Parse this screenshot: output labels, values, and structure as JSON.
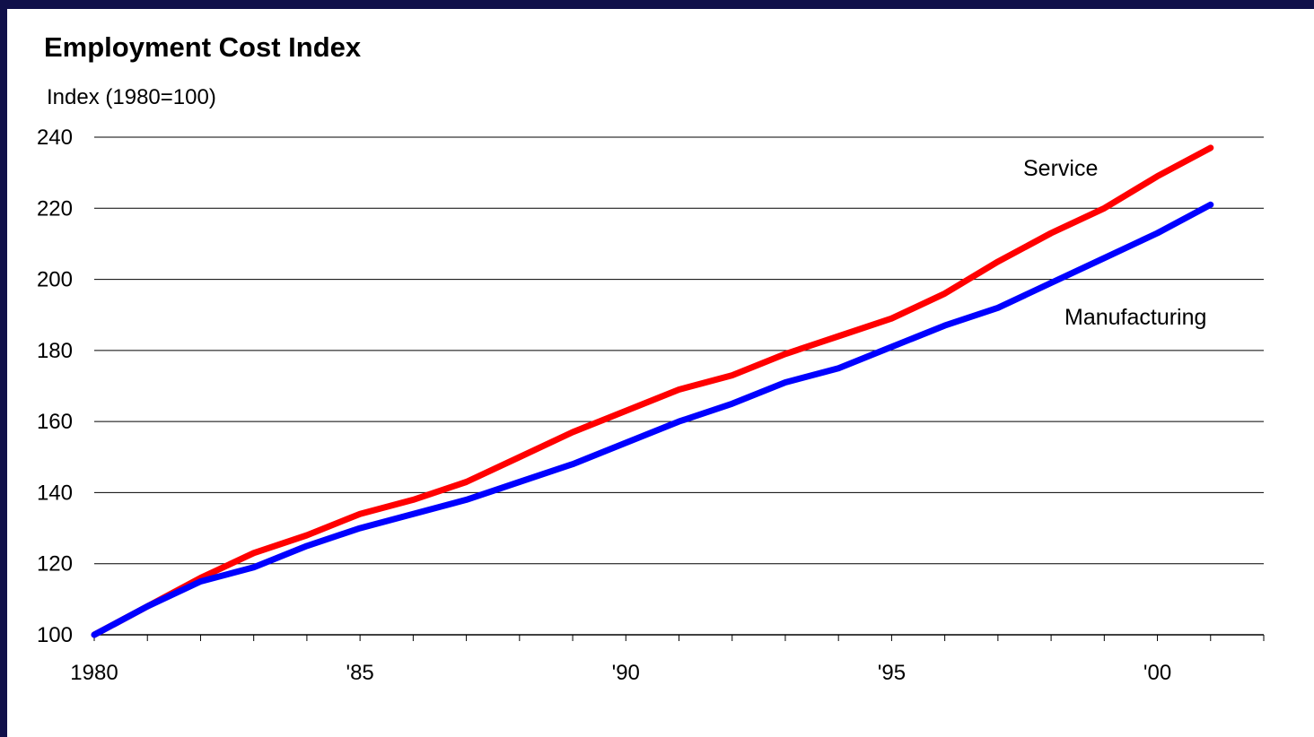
{
  "chart_data": {
    "type": "line",
    "title": "Employment Cost Index",
    "ylabel": "Index (1980=100)",
    "xlabel": "",
    "x": [
      1980,
      1981,
      1982,
      1983,
      1984,
      1985,
      1986,
      1987,
      1988,
      1989,
      1990,
      1991,
      1992,
      1993,
      1994,
      1995,
      1996,
      1997,
      1998,
      1999,
      2000,
      2001
    ],
    "xlim": [
      1980,
      2002
    ],
    "ylim": [
      100,
      240
    ],
    "yticks": [
      100,
      120,
      140,
      160,
      180,
      200,
      220,
      240
    ],
    "yticklabels": [
      "100",
      "120",
      "140",
      "160",
      "180",
      "200",
      "220",
      "240"
    ],
    "xticks": [
      1980,
      1985,
      1990,
      1995,
      2000
    ],
    "xticklabels": [
      "1980",
      "'85",
      "'90",
      "'95",
      "'00"
    ],
    "grid": true,
    "series": [
      {
        "name": "Service",
        "color": "#ff0000",
        "values": [
          100,
          108,
          116,
          123,
          128,
          134,
          138,
          143,
          150,
          157,
          163,
          169,
          173,
          179,
          184,
          189,
          196,
          205,
          213,
          220,
          229,
          237
        ]
      },
      {
        "name": "Manufacturing",
        "color": "#0000ff",
        "values": [
          100,
          108,
          115,
          119,
          125,
          130,
          134,
          138,
          143,
          148,
          154,
          160,
          165,
          171,
          175,
          181,
          187,
          192,
          199,
          206,
          213,
          221
        ]
      }
    ]
  }
}
